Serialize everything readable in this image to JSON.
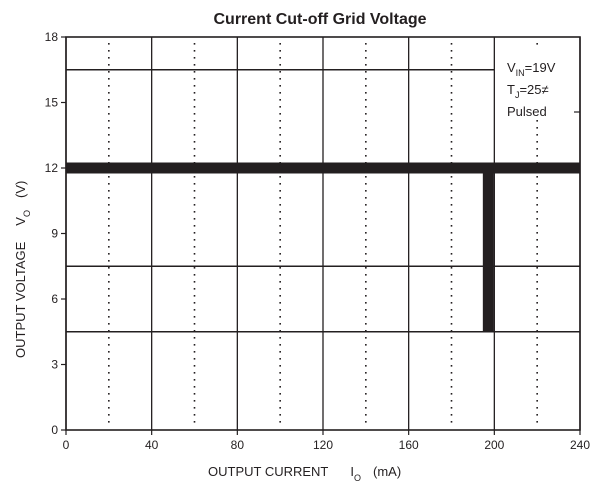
{
  "chart_data": {
    "type": "line",
    "title": "Current  Cut-off Grid Voltage",
    "xlabel": "OUTPUT CURRENT",
    "xlabel_symbol": "I",
    "xlabel_subscript": "O",
    "xlabel_unit": "(mA)",
    "ylabel": "OUTPUT VOLTAGE",
    "ylabel_symbol": "V",
    "ylabel_subscript": "O",
    "ylabel_unit": "(V)",
    "xlim": [
      0,
      240
    ],
    "ylim": [
      0,
      18
    ],
    "xticks": [
      0,
      40,
      80,
      120,
      160,
      200,
      240
    ],
    "yticks": [
      0,
      3,
      6,
      9,
      12,
      15,
      18
    ],
    "grid": {
      "solid_vertical": [
        0,
        40,
        80,
        120,
        160,
        200,
        240
      ],
      "dotted_vertical": [
        20,
        60,
        100,
        140,
        180,
        220
      ]
    },
    "horizontal_lines": [
      {
        "y": 16.5,
        "x": [
          0,
          200
        ]
      },
      {
        "y": 7.5,
        "x": [
          0,
          240
        ]
      },
      {
        "y": 4.5,
        "x": [
          0,
          240
        ]
      }
    ],
    "series": [
      {
        "type": "hline",
        "y": 12,
        "x": [
          0,
          240
        ],
        "style": "thick"
      },
      {
        "type": "vline",
        "x": 200,
        "y": [
          4.5,
          12
        ],
        "style": "thick"
      }
    ],
    "annotation": {
      "vin_symbol": "V",
      "vin_subscript": "IN",
      "vin_value": "=19V",
      "tj_symbol": "T",
      "tj_subscript": "J",
      "tj_value": "=25",
      "tj_unit_glyph": "≠",
      "pulsed": "Pulsed"
    },
    "colors": {
      "ink": "#231f20",
      "background": "#ffffff"
    }
  }
}
